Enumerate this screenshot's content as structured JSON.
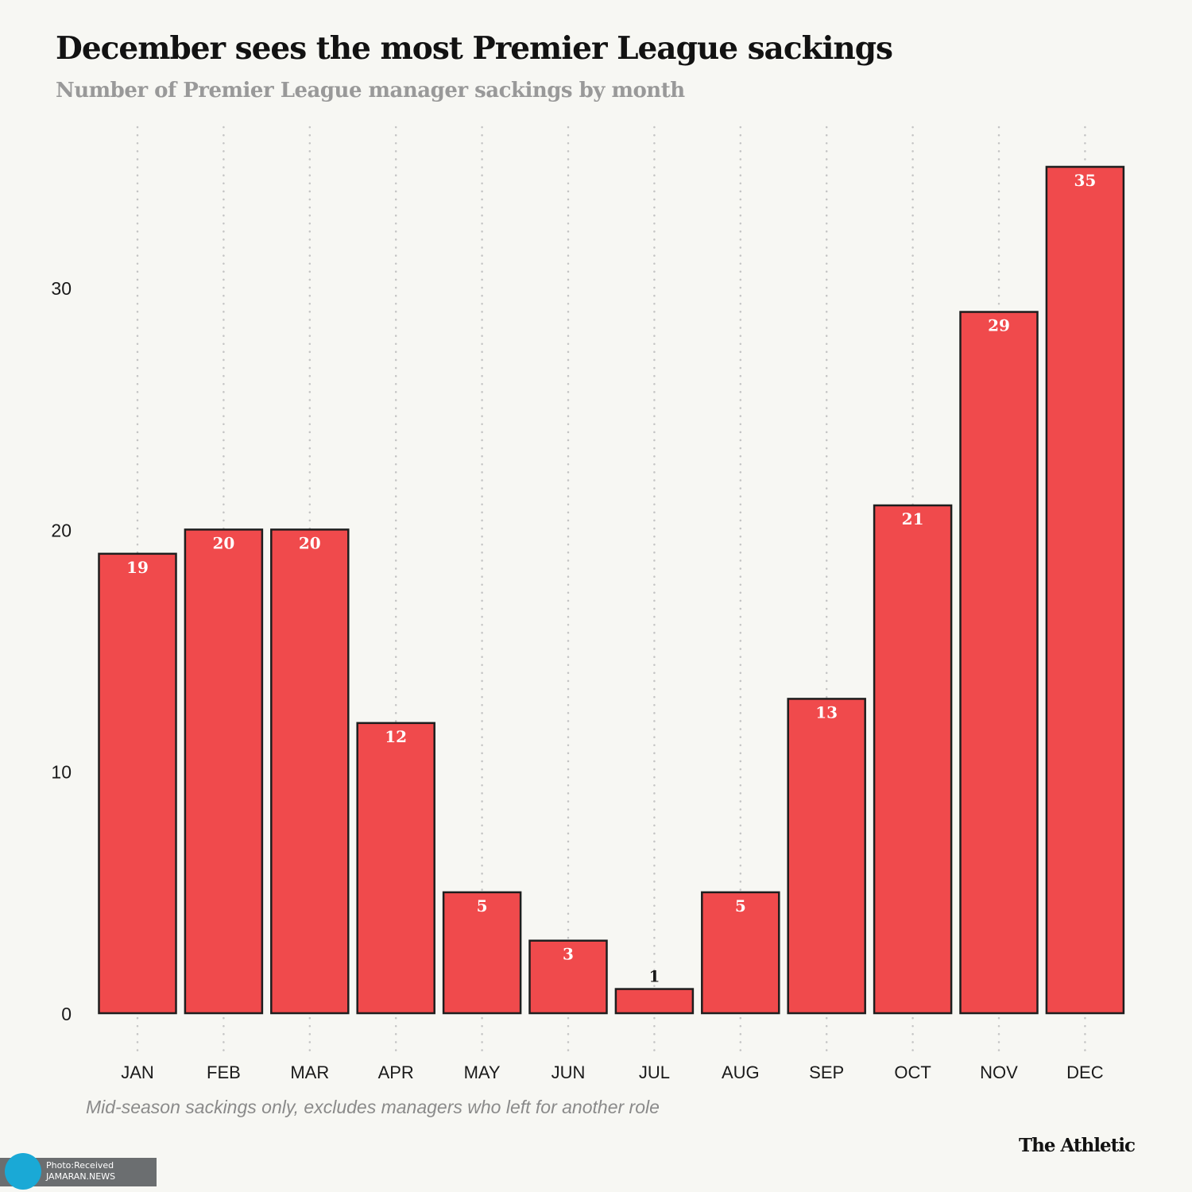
{
  "chart_data": {
    "type": "bar",
    "title": "December sees the most Premier League sackings",
    "subtitle": "Number of Premier League manager sackings by month",
    "categories": [
      "JAN",
      "FEB",
      "MAR",
      "APR",
      "MAY",
      "JUN",
      "JUL",
      "AUG",
      "SEP",
      "OCT",
      "NOV",
      "DEC"
    ],
    "values": [
      19,
      20,
      20,
      12,
      5,
      3,
      1,
      5,
      13,
      21,
      29,
      35
    ],
    "xlabel": "",
    "ylabel": "",
    "ylim": [
      0,
      35
    ],
    "yticks": [
      0,
      10,
      20,
      30
    ],
    "grid": "vertical dotted per category",
    "bar_color": "#f04a4c",
    "bar_outline_color": "#1e1e1e",
    "data_labels": true,
    "note": "Mid-season sackings only, excludes managers who left for another role"
  },
  "branding": {
    "logo_text": "The Athletic"
  },
  "watermark": {
    "line1": "Photo:Received",
    "line2": "JAMARAN.NEWS"
  }
}
